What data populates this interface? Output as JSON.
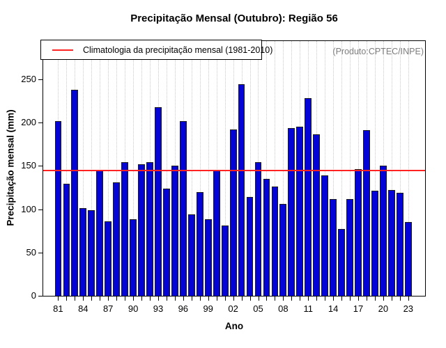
{
  "header": {
    "title": "Precipitação Mensal (Outubro): Região 56"
  },
  "legend": {
    "label": "Climatologia da precipitação mensal (1981-2010)"
  },
  "watermark": "(Produto:CPTEC/INPE)",
  "colors": {
    "bar": "#0404d6",
    "bar_border": "#1b1b1b",
    "climatology_line": "#ff2222",
    "grid": "#c9c9c9",
    "watermark_text": "#7e7e7e",
    "axis": "#000000"
  },
  "chart_data": {
    "type": "bar",
    "title": "Precipitação Mensal (Outubro): Região 56",
    "xlabel": "Ano",
    "ylabel": "Precipitação mensal (mm)",
    "categories": [
      1981,
      1982,
      1983,
      1984,
      1985,
      1986,
      1987,
      1988,
      1989,
      1990,
      1991,
      1992,
      1993,
      1994,
      1995,
      1996,
      1997,
      1998,
      1999,
      2000,
      2001,
      2002,
      2003,
      2004,
      2005,
      2006,
      2007,
      2008,
      2009,
      2010,
      2011,
      2012,
      2013,
      2014,
      2015,
      2016,
      2017,
      2018,
      2019,
      2020,
      2021,
      2022,
      2023
    ],
    "values": [
      202,
      129,
      238,
      101,
      99,
      145,
      86,
      131,
      154,
      88,
      152,
      154,
      218,
      124,
      150,
      202,
      94,
      120,
      88,
      145,
      81,
      192,
      244,
      114,
      154,
      135,
      126,
      106,
      194,
      195,
      228,
      186,
      139,
      112,
      77,
      112,
      146,
      191,
      121,
      150,
      122,
      119,
      85
    ],
    "x_tick_labels": [
      "81",
      "84",
      "87",
      "90",
      "93",
      "96",
      "99",
      "02",
      "05",
      "08",
      "11",
      "14",
      "17",
      "20",
      "23"
    ],
    "x_tick_step": 3,
    "y_ticks": [
      0,
      50,
      100,
      150,
      200,
      250
    ],
    "ylim": [
      0,
      294
    ],
    "climatology_value": 145,
    "grid": "vertical-dotted",
    "legend_position": "top-left",
    "legend_entries": [
      {
        "label": "Climatologia da precipitação mensal (1981-2010)",
        "color": "#ff2222",
        "value": 145
      }
    ]
  }
}
